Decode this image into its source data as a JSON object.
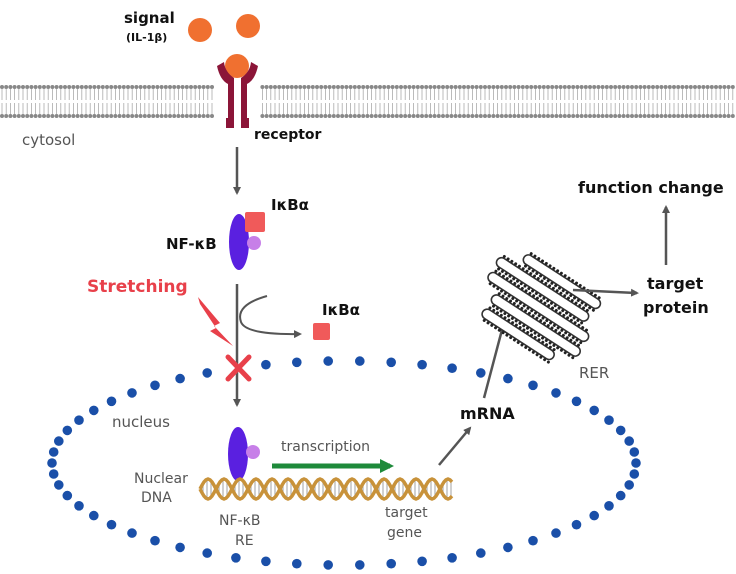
{
  "labels": {
    "signal": "signal",
    "signal_sub": "(IL-1β)",
    "cytosol": "cytosol",
    "receptor": "receptor",
    "ikba_top": "IκBα",
    "nfkb": "NF-κB",
    "stretching": "Stretching",
    "ikba_released": "IκBα",
    "nucleus": "nucleus",
    "transcription": "transcription",
    "nuclear": "Nuclear",
    "dna": "DNA",
    "nfkb_re_1": "NF-κB",
    "nfkb_re_2": "RE",
    "target_1": "target",
    "target_2": "gene",
    "mrna": "mRNA",
    "rer": "RER",
    "function_change": "function change",
    "target_protein_1": "target",
    "target_protein_2": "protein"
  },
  "colors": {
    "ligand": "#f07030",
    "receptor": "#8b1538",
    "nfkb": "#5a20e0",
    "nfkb_partner": "#c77fe8",
    "ikba": "#f05a5a",
    "stretch": "#e8404a",
    "nucleus_dot": "#1a4fa8",
    "transcription_arrow": "#1e8a3a",
    "dna": "#c8923a",
    "arrow": "#555555"
  }
}
